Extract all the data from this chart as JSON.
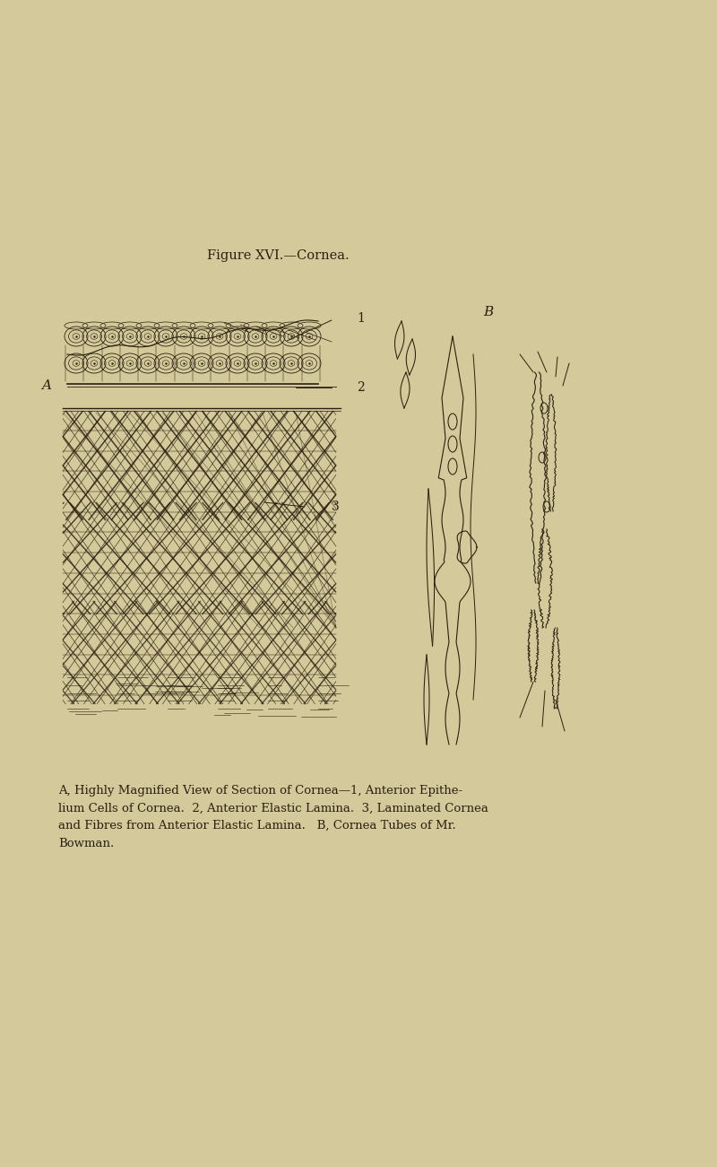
{
  "bg_color": "#d4c99a",
  "ink_color": "#2a2010",
  "title": "Figure XVI.—Cornea.",
  "title_fontsize": 10.5,
  "caption": "A, Highly Magnified View of Section of Cornea—1, Anterior Epithe-\nlium Cells of Cornea.  2, Anterior Elastic Lamina.  3, Laminated Cornea\nand Fibres from Anterior Elastic Lamina.   B, Cornea Tubes of Mr.\nBowman.",
  "caption_fontsize": 9.5,
  "fig_width": 8.0,
  "fig_height": 13.01,
  "dpi": 100
}
